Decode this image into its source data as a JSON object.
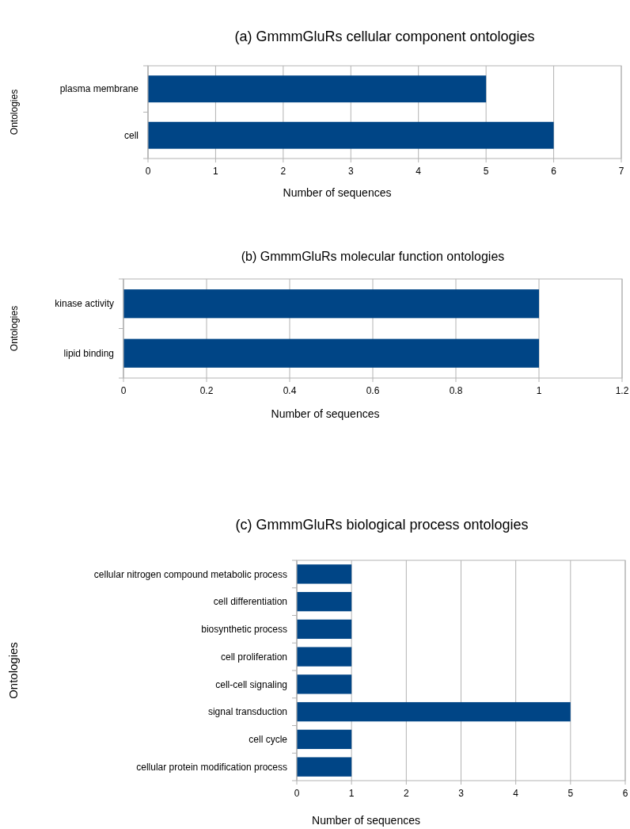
{
  "chart_data": [
    {
      "type": "bar",
      "orientation": "horizontal",
      "title": "(a) GmmmGluRs cellular component ontologies",
      "xlabel": "Number of sequences",
      "ylabel": "Ontologies",
      "categories": [
        "plasma membrane",
        "cell"
      ],
      "values": [
        5,
        6
      ],
      "color": "#004586",
      "xlim": [
        0,
        7
      ],
      "xticks": [
        0,
        1,
        2,
        3,
        4,
        5,
        6,
        7
      ],
      "grid": "x"
    },
    {
      "type": "bar",
      "orientation": "horizontal",
      "title": "(b) GmmmGluRs molecular function ontologies",
      "xlabel": "Number of sequences",
      "ylabel": "Ontologies",
      "categories": [
        "kinase activity",
        "lipid binding"
      ],
      "values": [
        1,
        1
      ],
      "color": "#004586",
      "xlim": [
        0,
        1.2
      ],
      "xticks": [
        0,
        0.2,
        0.4,
        0.6,
        0.8,
        1,
        1.2
      ],
      "grid": "x"
    },
    {
      "type": "bar",
      "orientation": "horizontal",
      "title": "(c) GmmmGluRs biological process ontologies",
      "xlabel": "Number of sequences",
      "ylabel": "Ontologies",
      "categories": [
        "cellular nitrogen compound metabolic process",
        "cell differentiation",
        "biosynthetic process",
        "cell proliferation",
        "cell-cell signaling",
        "signal transduction",
        "cell cycle",
        "cellular protein modification process"
      ],
      "values": [
        1,
        1,
        1,
        1,
        1,
        5,
        1,
        1
      ],
      "color": "#004586",
      "xlim": [
        0,
        6
      ],
      "xticks": [
        0,
        1,
        2,
        3,
        4,
        5,
        6
      ],
      "grid": "x"
    }
  ]
}
